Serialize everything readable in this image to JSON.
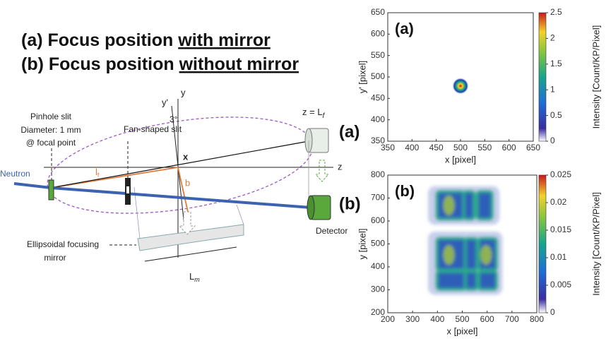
{
  "title_lines": [
    {
      "label": "(a)",
      "text": "Focus position",
      "emphasis": "with mirror"
    },
    {
      "label": "(b)",
      "text": "Focus position",
      "emphasis": "without mirror"
    }
  ],
  "diagram": {
    "pinhole": [
      "Pinhole slit",
      "Diameter: 1 mm",
      "@ focal point"
    ],
    "fan_slit": "Fan-shaped slit",
    "neutron": "Neutron",
    "mirror": [
      "Ellipsoidal focusing",
      "mirror"
    ],
    "detector": "Detector",
    "axis_y": "y",
    "axis_y_prime": "y'",
    "axis_x": "x",
    "axis_z": "z",
    "angle": "3°",
    "focus": {
      "text": "z = L",
      "sub": "f"
    },
    "lf": {
      "text": "l",
      "sub": "f"
    },
    "b": "b",
    "lm": {
      "text": "L",
      "sub": "m"
    },
    "case_a": "(a)",
    "case_b": "(b)"
  },
  "chart_data": [
    {
      "type": "heatmap",
      "panel": "(a)",
      "x_label": "x [pixel]",
      "y_label": "y' [pixel]",
      "xlim": [
        350,
        650
      ],
      "ylim": [
        350,
        650
      ],
      "xticks": [
        350,
        400,
        450,
        500,
        550,
        600,
        650
      ],
      "yticks": [
        350,
        400,
        450,
        500,
        550,
        600,
        650
      ],
      "colorbar": {
        "label": "Intensity [Count/KP/Pixel]",
        "lim": [
          0,
          2.5
        ],
        "ticks": [
          0,
          0.5,
          1,
          1.5,
          2,
          2.5
        ]
      }
    },
    {
      "type": "heatmap",
      "panel": "(b)",
      "x_label": "x [pixel]",
      "y_label": "y [pixel]",
      "xlim": [
        200,
        800
      ],
      "ylim": [
        200,
        800
      ],
      "xticks": [
        200,
        300,
        400,
        500,
        600,
        700,
        800
      ],
      "yticks": [
        200,
        300,
        400,
        500,
        600,
        700,
        800
      ],
      "colorbar": {
        "label": "Intensity [Count/KP/Pixel]",
        "lim": [
          0,
          0.025
        ],
        "ticks": [
          0,
          0.005,
          0.01,
          0.015,
          0.02,
          0.025
        ]
      }
    }
  ]
}
